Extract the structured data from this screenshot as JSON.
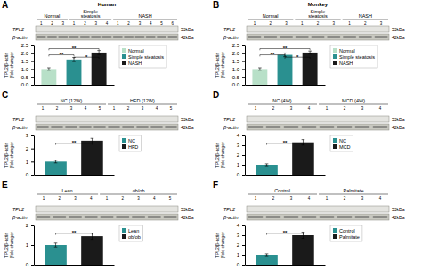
{
  "chart_data": [
    {
      "type": "bar",
      "title": "A",
      "subtitle": "Human",
      "blot": {
        "groups": [
          {
            "name": "Normal",
            "lanes": [
              1,
              2,
              3
            ]
          },
          {
            "name": "Simple\nsteatosis",
            "lanes": [
              1,
              2,
              3,
              4
            ]
          },
          {
            "name": "NASH",
            "lanes": [
              1,
              2,
              3,
              4,
              5,
              6
            ]
          }
        ],
        "rows": [
          {
            "label": "TPL2",
            "kda": "53kDa"
          },
          {
            "label": "β-actin",
            "kda": "42kDa"
          }
        ]
      },
      "categories": [
        "Normal",
        "Simple steatosis",
        "NASH"
      ],
      "values": [
        1.0,
        1.6,
        2.05
      ],
      "errors": [
        0.08,
        0.13,
        0.13
      ],
      "colors": [
        "#b8e0c8",
        "#2a9090",
        "#1a1a1a"
      ],
      "y_label": "TPL2/β-actin\n(fold change)",
      "ylim": [
        0,
        2.5
      ],
      "yticks": [
        {
          "value": 0,
          "label": "0.0"
        },
        0.5,
        {
          "value": 1,
          "label": "1.0"
        },
        1.5,
        {
          "value": 2,
          "label": "2.0"
        },
        2.5
      ],
      "annotations": [
        {
          "text": "**",
          "between": [
            "Normal",
            "Simple steatosis"
          ],
          "y": 1.9
        },
        {
          "text": "**",
          "between": [
            "Normal",
            "NASH"
          ],
          "y": 2.3
        },
        {
          "text": "*",
          "between": [
            "Simple steatosis",
            "NASH"
          ],
          "y": 1.75
        }
      ],
      "legend": "right",
      "tick_labels": "y"
    },
    {
      "type": "bar",
      "title": "B",
      "subtitle": "Monkey",
      "blot": {
        "groups": [
          {
            "name": "Normal",
            "lanes": [
              1,
              2,
              3
            ]
          },
          {
            "name": "Simple\nsteatosis",
            "lanes": [
              1,
              2,
              3
            ]
          },
          {
            "name": "NASH",
            "lanes": [
              1,
              2,
              3
            ]
          }
        ],
        "rows": [
          {
            "label": "TPL2",
            "kda": "53kDa"
          },
          {
            "label": "β-actin",
            "kda": "42kDa"
          }
        ]
      },
      "categories": [
        "Normal",
        "Simple steatosis",
        "NASH"
      ],
      "values": [
        1.0,
        1.9,
        2.05
      ],
      "errors": [
        0.08,
        0.12,
        0.1
      ],
      "colors": [
        "#b8e0c8",
        "#2a9090",
        "#1a1a1a"
      ],
      "y_label": "TPL2/β-actin\n(fold change)",
      "ylim": [
        0,
        2.5
      ],
      "yticks": [
        {
          "value": 0,
          "label": "0.0"
        },
        0.5,
        {
          "value": 1,
          "label": "1.0"
        },
        1.5,
        {
          "value": 2,
          "label": "2.0"
        },
        2.5
      ],
      "annotations": [
        {
          "text": "**",
          "between": [
            "Normal",
            "Simple steatosis"
          ],
          "y": 1.9
        },
        {
          "text": "**",
          "between": [
            "Normal",
            "NASH"
          ],
          "y": 2.3
        },
        {
          "text": "*",
          "between": [
            "Simple steatosis",
            "NASH"
          ],
          "y": 1.75
        }
      ],
      "legend": "right",
      "tick_labels": "y"
    },
    {
      "type": "bar",
      "title": "C",
      "blot": {
        "groups": [
          {
            "name": "NC (12W)",
            "lanes": [
              1,
              2,
              3,
              4,
              5
            ]
          },
          {
            "name": "HFD (12W)",
            "lanes": [
              1,
              2,
              3,
              4,
              5
            ]
          }
        ],
        "rows": [
          {
            "label": "TPL2",
            "kda": "53kDa"
          },
          {
            "label": "β-actin",
            "kda": "42kDa"
          }
        ]
      },
      "categories": [
        "NC",
        "HFD"
      ],
      "values": [
        1.0,
        2.6
      ],
      "errors": [
        0.1,
        0.18
      ],
      "colors": [
        "#2a9090",
        "#1a1a1a"
      ],
      "y_label": "TPL2/β-actin\n(fold change)",
      "ylim": [
        0,
        3
      ],
      "yticks": [
        0,
        1,
        2,
        3
      ],
      "annotations": [
        {
          "text": "**",
          "between": [
            "NC",
            "HFD"
          ],
          "y": 2.4
        }
      ],
      "legend": "right",
      "tick_labels": "y"
    },
    {
      "type": "bar",
      "title": "D",
      "blot": {
        "groups": [
          {
            "name": "NC (4W)",
            "lanes": [
              1,
              2,
              3,
              4
            ]
          },
          {
            "name": "MCD (4W)",
            "lanes": [
              1,
              2,
              3,
              4
            ]
          }
        ],
        "rows": [
          {
            "label": "TPL2",
            "kda": "53kDa"
          },
          {
            "label": "β-actin",
            "kda": "42kDa"
          }
        ]
      },
      "categories": [
        "NC",
        "MCD"
      ],
      "values": [
        1.0,
        3.3
      ],
      "errors": [
        0.1,
        0.28
      ],
      "colors": [
        "#2a9090",
        "#1a1a1a"
      ],
      "y_label": "TPL2/β-actin\n(fold change)",
      "ylim": [
        0,
        4
      ],
      "yticks": [
        0,
        1,
        2,
        3,
        4
      ],
      "annotations": [
        {
          "text": "**",
          "between": [
            "NC",
            "MCD"
          ],
          "y": 3.2
        }
      ],
      "legend": "right",
      "tick_labels": "y"
    },
    {
      "type": "bar",
      "title": "E",
      "blot": {
        "groups": [
          {
            "name": "Lean",
            "lanes": [
              1,
              2,
              3,
              4
            ]
          },
          {
            "name": "ob/ob",
            "lanes": [
              1,
              2,
              3,
              4,
              5
            ]
          }
        ],
        "rows": [
          {
            "label": "TPL2",
            "kda": "53kDa"
          },
          {
            "label": "β-actin",
            "kda": "42kDa"
          }
        ]
      },
      "categories": [
        "Lean",
        "ob/ob"
      ],
      "values": [
        1.0,
        1.45
      ],
      "errors": [
        0.1,
        0.16
      ],
      "colors": [
        "#2a9090",
        "#1a1a1a"
      ],
      "y_label": "TPL2/β-actin\n(fold change)",
      "ylim": [
        0,
        2
      ],
      "yticks": [
        0,
        1,
        2
      ],
      "annotations": [
        {
          "text": "**",
          "between": [
            "Lean",
            "ob/ob"
          ],
          "y": 1.6
        }
      ],
      "legend": "right",
      "tick_labels": "y"
    },
    {
      "type": "bar",
      "title": "F",
      "blot": {
        "groups": [
          {
            "name": "Control",
            "lanes": [
              1,
              2,
              3,
              4
            ]
          },
          {
            "name": "Palmitate",
            "lanes": [
              1,
              2,
              3,
              4
            ]
          }
        ],
        "rows": [
          {
            "label": "TPL2",
            "kda": "53kDa"
          },
          {
            "label": "β-actin",
            "kda": "42kDa"
          }
        ]
      },
      "categories": [
        "Control",
        "Palmitate"
      ],
      "values": [
        1.0,
        3.0
      ],
      "errors": [
        0.1,
        0.32
      ],
      "colors": [
        "#2a9090",
        "#1a1a1a"
      ],
      "y_label": "TPL2/β-actin\n(fold change)",
      "ylim": [
        0,
        4
      ],
      "yticks": [
        0,
        1,
        2,
        3,
        4
      ],
      "annotations": [
        {
          "text": "**",
          "between": [
            "Control",
            "Palmitate"
          ],
          "y": 3.2
        }
      ],
      "legend": "right",
      "tick_labels": "y"
    }
  ]
}
